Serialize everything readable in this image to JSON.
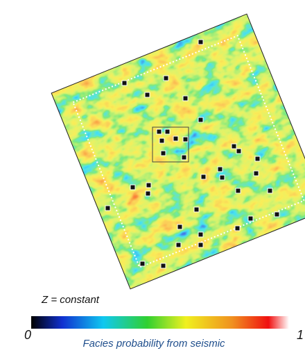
{
  "map": {
    "annotation": "Z = constant"
  },
  "colorbar": {
    "min": 0,
    "max": 1,
    "title": "Facies probability from seismic"
  }
}
